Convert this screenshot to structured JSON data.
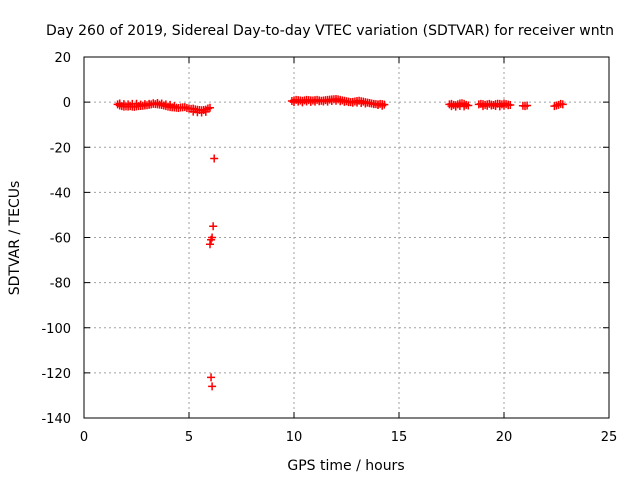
{
  "chart_data": {
    "type": "scatter",
    "title": "Day 260 of 2019, Sidereal Day-to-day VTEC variation (SDTVAR) for receiver wntn",
    "xlabel": "GPS time / hours",
    "ylabel": "SDTVAR / TECUs",
    "xlim": [
      0,
      25
    ],
    "ylim": [
      -140,
      20
    ],
    "xticks": [
      0,
      5,
      10,
      15,
      20,
      25
    ],
    "yticks": [
      -140,
      -120,
      -100,
      -80,
      -60,
      -40,
      -20,
      0,
      20
    ],
    "xtick_labels": [
      "0",
      "5",
      "10",
      "15",
      "20",
      "25"
    ],
    "ytick_labels": [
      "-140",
      "-120",
      "-100",
      "-80",
      "-60",
      "-40",
      "-20",
      "0",
      "20"
    ],
    "grid": true,
    "marker": "plus",
    "color": "#ff0000",
    "series": [
      {
        "x": [
          1.6,
          1.7,
          1.8,
          1.9,
          2.0,
          2.1,
          2.2,
          2.3,
          2.4,
          2.5,
          2.6,
          2.7,
          2.8,
          2.9,
          3.0,
          3.1,
          3.2,
          3.3,
          3.4,
          3.5,
          3.6,
          3.7,
          3.8,
          3.9,
          4.0,
          4.1,
          4.2,
          4.3,
          4.4,
          4.5,
          4.6,
          4.7,
          4.8,
          4.9,
          5.0,
          5.1,
          5.2,
          5.3,
          5.4,
          5.5,
          5.6,
          5.7,
          5.8,
          5.9,
          6.0,
          1.7,
          1.9,
          2.1,
          2.3,
          2.5,
          2.7,
          2.9,
          3.1,
          3.3,
          3.5,
          3.7,
          3.9,
          4.1,
          4.3,
          5.2,
          5.4,
          5.6,
          5.8,
          6.2,
          6.15,
          6.05,
          6.1,
          6.0,
          6.05,
          6.1,
          9.9,
          10.0,
          10.1,
          10.2,
          10.3,
          10.4,
          10.5,
          10.6,
          10.7,
          10.8,
          10.9,
          11.0,
          11.1,
          11.2,
          11.3,
          11.4,
          11.5,
          11.6,
          11.7,
          11.8,
          11.9,
          12.0,
          12.1,
          12.2,
          12.3,
          12.4,
          12.5,
          12.6,
          12.7,
          12.8,
          12.9,
          13.0,
          13.1,
          13.2,
          13.3,
          13.4,
          13.5,
          13.6,
          13.7,
          13.8,
          13.9,
          14.0,
          14.1,
          14.2,
          14.3,
          10.0,
          10.2,
          10.4,
          10.6,
          10.8,
          11.0,
          11.2,
          11.4,
          11.6,
          11.8,
          12.0,
          12.2,
          12.4,
          12.6,
          12.8,
          13.0,
          13.2,
          13.4,
          13.6,
          13.8,
          14.0,
          14.2,
          17.4,
          17.5,
          17.6,
          17.7,
          17.8,
          17.9,
          18.0,
          18.1,
          18.2,
          18.3,
          17.5,
          17.7,
          17.9,
          18.1,
          18.8,
          18.9,
          19.0,
          19.1,
          19.2,
          19.3,
          19.4,
          19.5,
          19.6,
          19.7,
          19.8,
          19.9,
          20.0,
          20.1,
          20.2,
          20.3,
          19.0,
          19.2,
          19.4,
          19.6,
          19.8,
          20.0,
          20.2,
          20.9,
          21.0,
          21.1,
          22.4,
          22.5,
          22.6,
          22.7,
          22.8
        ],
        "y": [
          -1.0,
          -1.5,
          -1.8,
          -2.0,
          -1.9,
          -2.0,
          -1.8,
          -2.0,
          -2.1,
          -1.9,
          -1.8,
          -1.7,
          -1.6,
          -1.5,
          -1.4,
          -1.2,
          -1.0,
          -0.8,
          -0.9,
          -1.0,
          -1.1,
          -1.3,
          -1.5,
          -1.8,
          -2.0,
          -2.2,
          -2.3,
          -2.4,
          -2.5,
          -2.6,
          -2.4,
          -2.3,
          -2.2,
          -2.6,
          -2.8,
          -3.0,
          -2.9,
          -3.2,
          -3.4,
          -3.5,
          -3.6,
          -3.5,
          -3.3,
          -2.8,
          -2.5,
          -0.6,
          -0.9,
          -1.0,
          -0.8,
          -0.7,
          -1.1,
          -0.9,
          -0.8,
          -0.5,
          -0.4,
          -0.6,
          -1.0,
          -1.2,
          -1.8,
          -4.2,
          -4.5,
          -4.6,
          -4.3,
          -25,
          -55,
          -61,
          -60,
          -63,
          -122,
          -126,
          0.5,
          0.8,
          1.0,
          0.9,
          0.7,
          0.6,
          0.8,
          1.0,
          0.9,
          0.8,
          0.7,
          0.9,
          1.0,
          0.8,
          0.6,
          0.7,
          0.9,
          1.0,
          1.1,
          1.2,
          1.3,
          1.4,
          1.2,
          1.0,
          0.8,
          0.6,
          0.4,
          0.2,
          0.0,
          0.1,
          0.3,
          0.5,
          0.6,
          0.4,
          0.2,
          0.0,
          -0.2,
          -0.4,
          -0.6,
          -0.8,
          -0.9,
          -1.0,
          -0.8,
          -0.9,
          -1.1,
          0.0,
          0.2,
          -0.1,
          0.3,
          0.1,
          0.2,
          0.4,
          0.3,
          0.2,
          0.5,
          0.6,
          0.4,
          0.1,
          0.0,
          -0.3,
          -0.2,
          -0.4,
          -0.6,
          -0.5,
          -0.9,
          -1.3,
          -1.6,
          -1.0,
          -0.8,
          -1.2,
          -1.4,
          -1.0,
          -0.6,
          -0.5,
          -0.8,
          -1.2,
          -1.5,
          -1.8,
          -2.0,
          -1.7,
          -1.9,
          -1.0,
          -0.8,
          -0.9,
          -1.2,
          -1.0,
          -0.8,
          -1.1,
          -1.3,
          -0.9,
          -0.7,
          -0.8,
          -1.0,
          -0.6,
          -0.9,
          -1.1,
          -1.3,
          -1.8,
          -1.6,
          -1.5,
          -1.7,
          -1.9,
          -1.6,
          -1.4,
          -1.6,
          -1.8,
          -1.5,
          -1.8,
          -1.5,
          -1.2,
          -0.8,
          -1.0
        ]
      }
    ]
  }
}
